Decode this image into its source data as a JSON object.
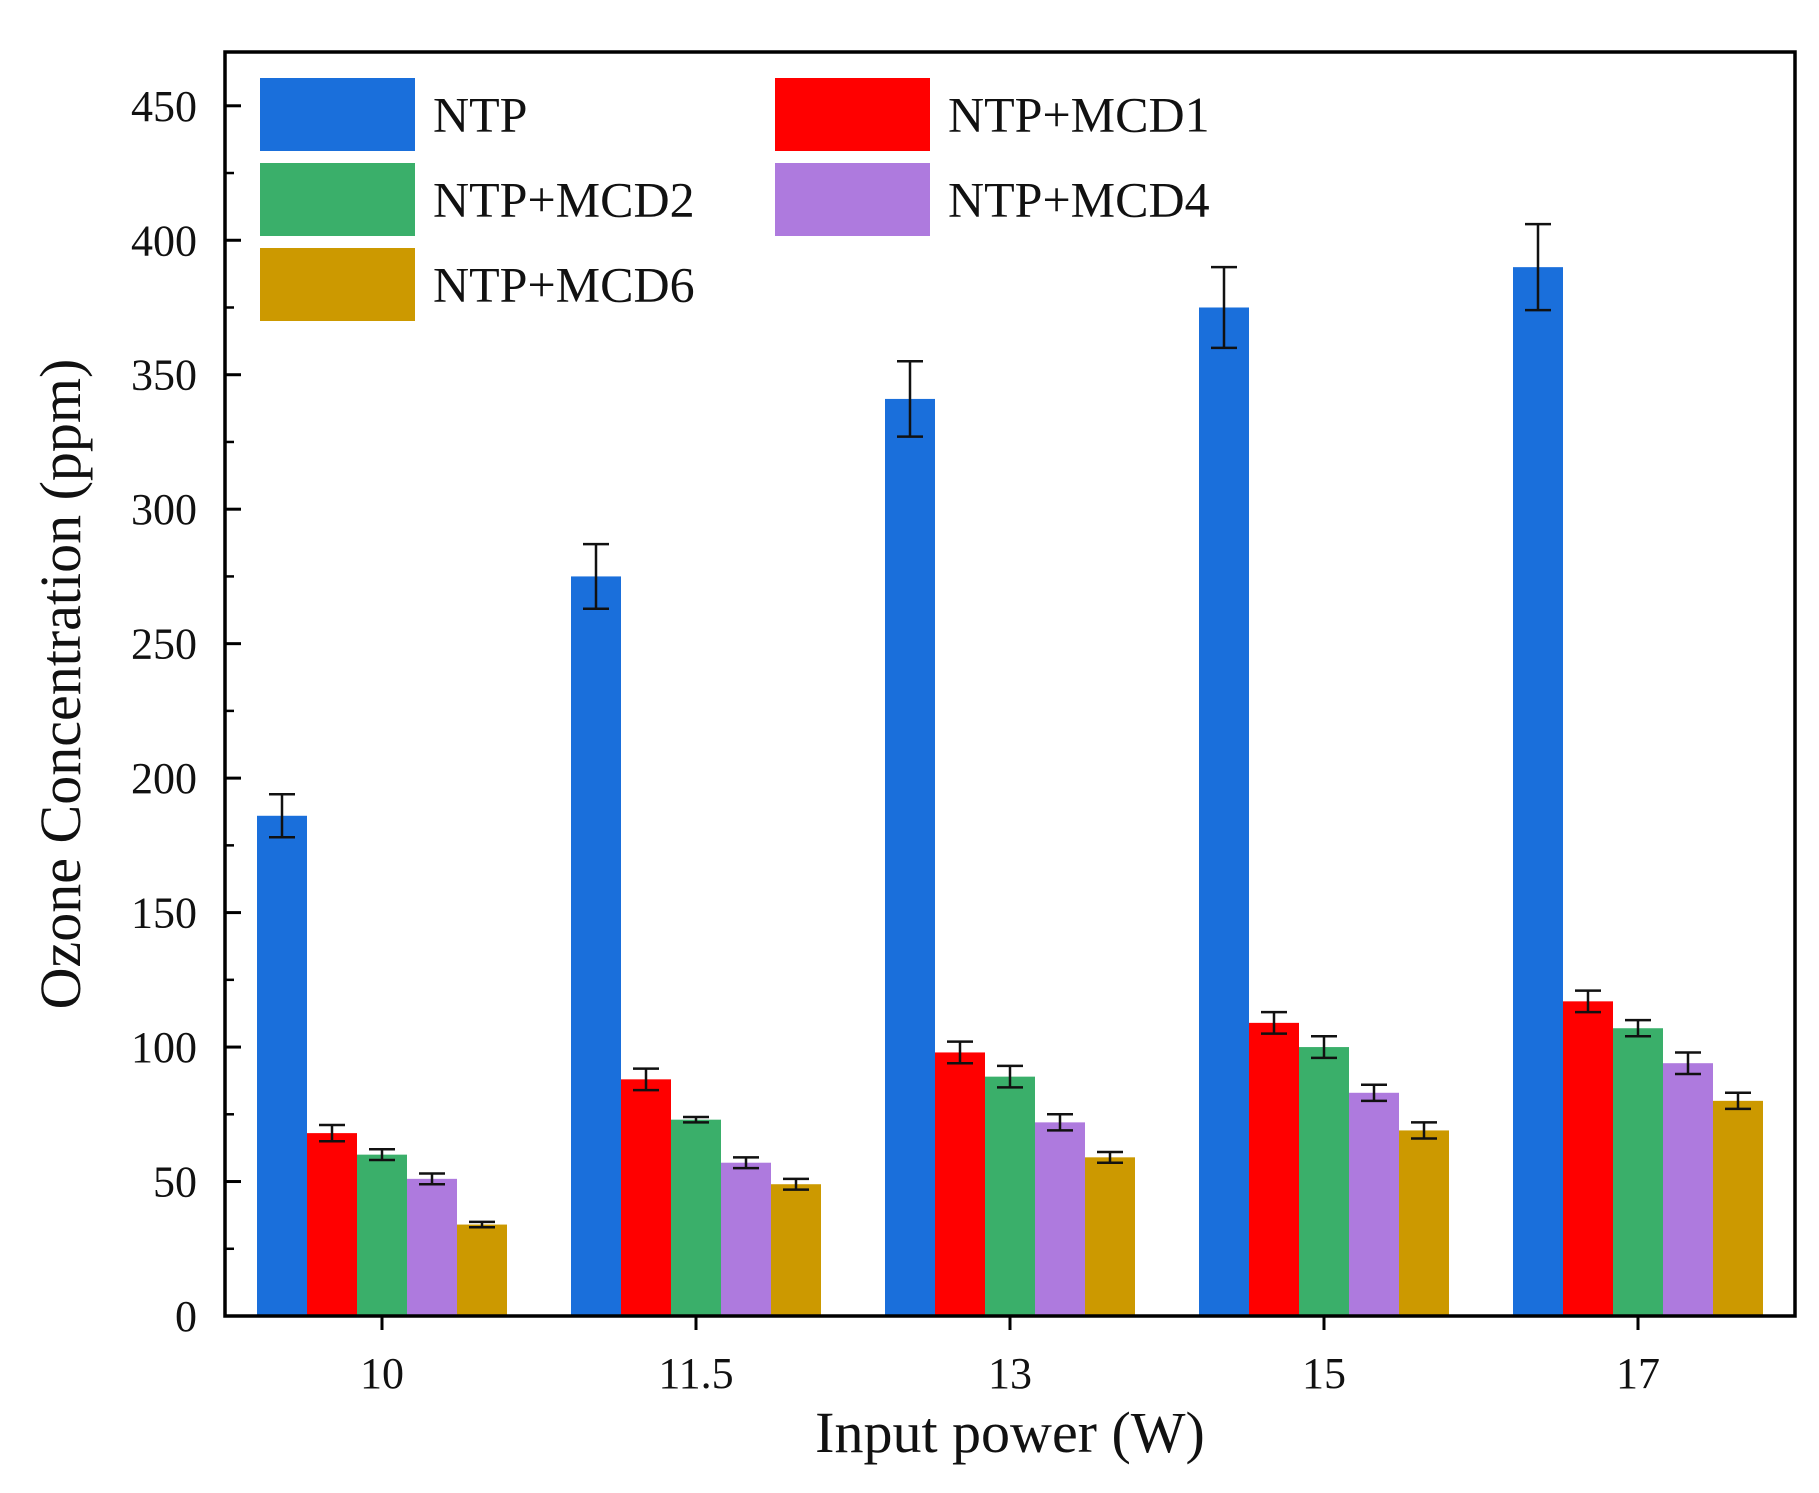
{
  "chart_data": {
    "type": "bar",
    "title": "",
    "xlabel": "Input power (W)",
    "ylabel": "Ozone Concentration (ppm)",
    "categories": [
      "10",
      "11.5",
      "13",
      "15",
      "17"
    ],
    "ylim": [
      0,
      470
    ],
    "yticks": [
      0,
      50,
      100,
      150,
      200,
      250,
      300,
      350,
      400,
      450
    ],
    "yticks_labels": [
      "0",
      "50",
      "100",
      "150",
      "200",
      "250",
      "300",
      "350",
      "400",
      "450"
    ],
    "grid": false,
    "legend_position": "top-left",
    "series": [
      {
        "name": "NTP",
        "color": "#1a6fdb",
        "values": [
          186,
          275,
          341,
          375,
          390
        ],
        "errors": [
          8,
          12,
          14,
          15,
          16
        ]
      },
      {
        "name": "NTP+MCD1",
        "color": "#ff0000",
        "values": [
          68,
          88,
          98,
          109,
          117
        ],
        "errors": [
          3,
          4,
          4,
          4,
          4
        ]
      },
      {
        "name": "NTP+MCD2",
        "color": "#3aaf6a",
        "values": [
          60,
          73,
          89,
          100,
          107
        ],
        "errors": [
          2,
          1,
          4,
          4,
          3
        ]
      },
      {
        "name": "NTP+MCD4",
        "color": "#ae7ade",
        "values": [
          51,
          57,
          72,
          83,
          94
        ],
        "errors": [
          2,
          2,
          3,
          3,
          4
        ]
      },
      {
        "name": "NTP+MCD6",
        "color": "#cc9900",
        "values": [
          34,
          49,
          59,
          69,
          80
        ],
        "errors": [
          1,
          2,
          2,
          3,
          3
        ]
      }
    ]
  }
}
